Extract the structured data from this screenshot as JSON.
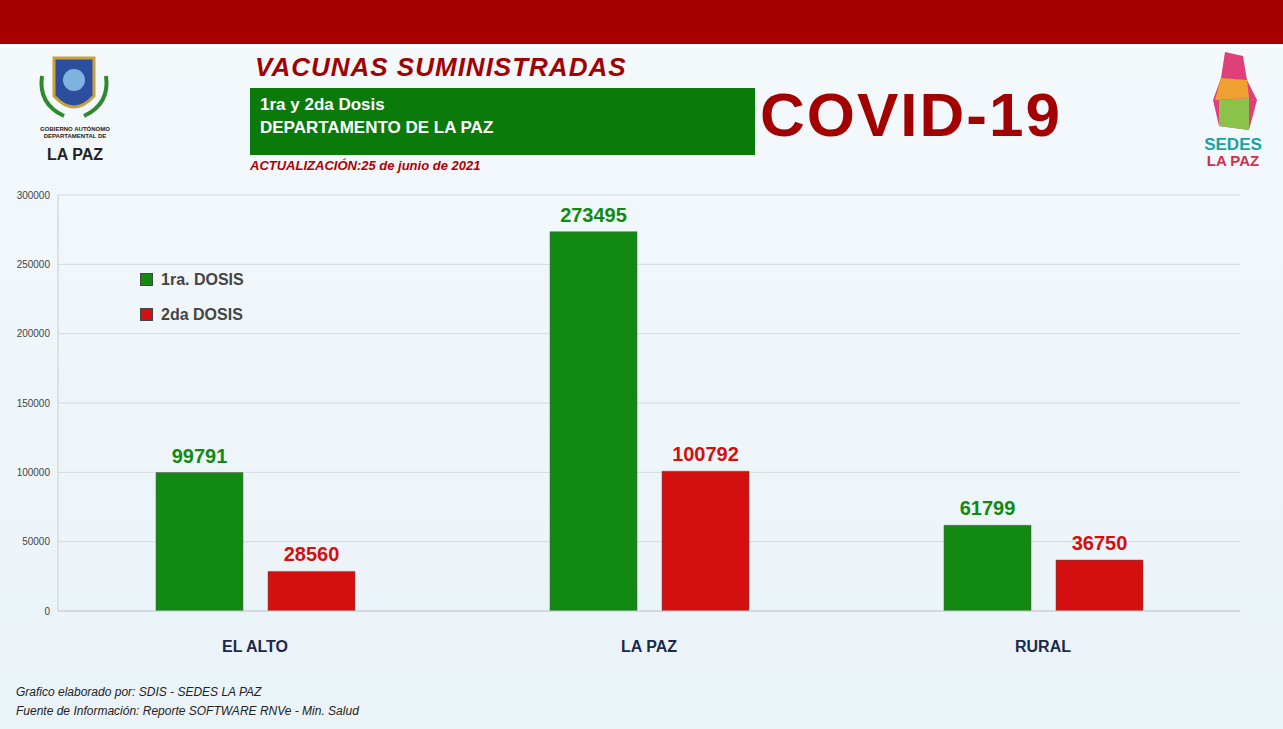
{
  "chart_data": {
    "type": "bar",
    "title": "VACUNAS SUMINISTRADAS",
    "subtitle": [
      "1ra y 2da Dosis",
      "DEPARTAMENTO DE LA PAZ"
    ],
    "annotations": [
      "COVID-19",
      "ACTUALIZACIÓN:25 de junio de 2021",
      "Grafico elaborado por: SDIS - SEDES LA PAZ",
      "Fuente de Información: Reporte SOFTWARE RNVe - Min. Salud",
      "GOBIERNO AUTÓNOMO DEPARTAMENTAL DE",
      "LA PAZ",
      "SEDES",
      "LA PAZ"
    ],
    "categories": [
      "EL ALTO",
      "LA PAZ",
      "RURAL"
    ],
    "series": [
      {
        "name": "1ra. DOSIS",
        "color": "#128a12",
        "values": [
          99791,
          273495,
          61799
        ]
      },
      {
        "name": "2da DOSIS",
        "color": "#d40f0f",
        "values": [
          28560,
          100792,
          36750
        ]
      }
    ],
    "ylim": [
      0,
      300000
    ],
    "yticks": [
      0,
      50000,
      100000,
      150000,
      200000,
      250000,
      300000
    ],
    "grid": true,
    "legend": "upper left",
    "data_labels": true
  }
}
